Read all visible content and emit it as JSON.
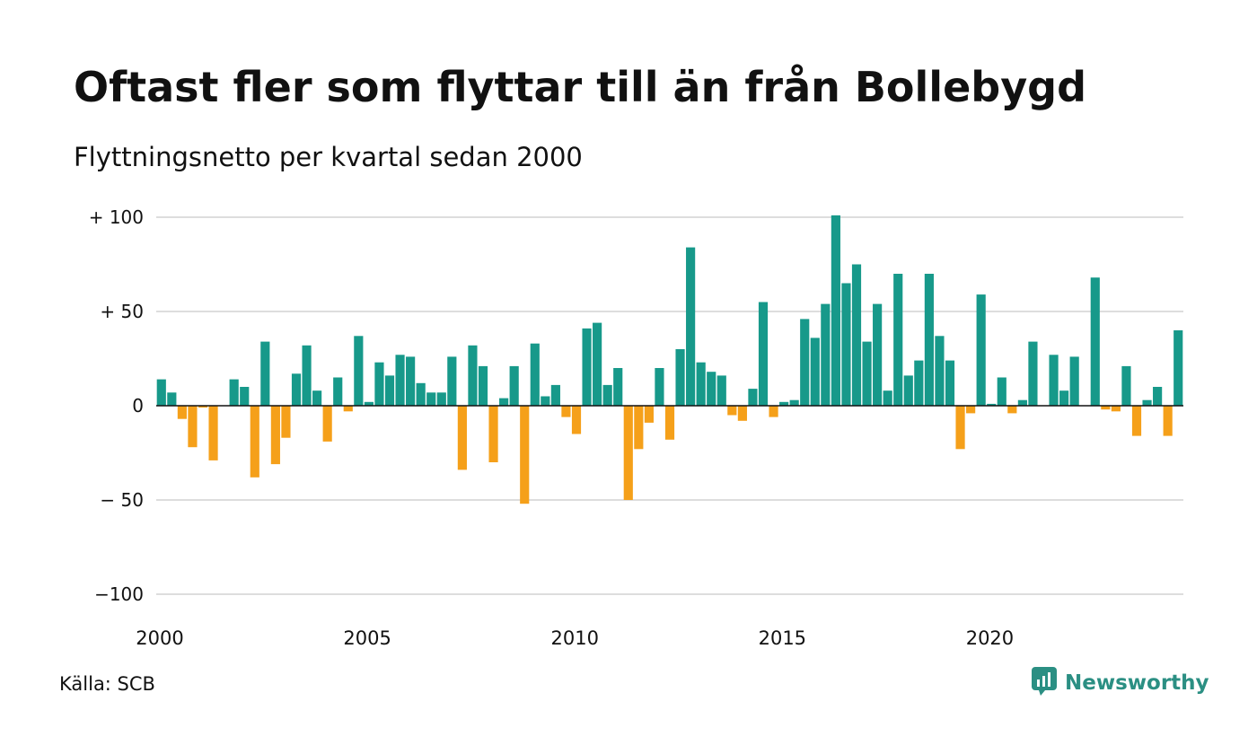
{
  "title": "Oftast fler som flyttar till än från Bollebygd",
  "subtitle": "Flyttningsnetto per kvartal sedan 2000",
  "source": "Källa: SCB",
  "brand": {
    "name": "Newsworthy",
    "icon": "newsworthy-logo-icon",
    "color": "#2b8f83"
  },
  "colors": {
    "positive": "#17998a",
    "negative": "#f5a01a",
    "grid": "#dddddd",
    "zero": "#111111"
  },
  "chart_data": {
    "type": "bar",
    "title": "Oftast fler som flyttar till än från Bollebygd",
    "subtitle": "Flyttningsnetto per kvartal sedan 2000",
    "xlabel": "",
    "ylabel": "",
    "ylim": [
      -100,
      100
    ],
    "y_ticks": [
      {
        "value": 100,
        "label": "+ 100"
      },
      {
        "value": 50,
        "label": "+  50"
      },
      {
        "value": 0,
        "label": "0"
      },
      {
        "value": -50,
        "label": "− 50"
      },
      {
        "value": -100,
        "label": "−100"
      }
    ],
    "x_ticks": [
      "2000",
      "2005",
      "2010",
      "2015",
      "2020"
    ],
    "x_tick_years": [
      2000,
      2005,
      2010,
      2015,
      2020
    ],
    "grid": true,
    "categories": [
      "2000K1",
      "2000K2",
      "2000K3",
      "2000K4",
      "2001K1",
      "2001K2",
      "2001K3",
      "2001K4",
      "2002K1",
      "2002K2",
      "2002K3",
      "2002K4",
      "2003K1",
      "2003K2",
      "2003K3",
      "2003K4",
      "2004K1",
      "2004K2",
      "2004K3",
      "2004K4",
      "2005K1",
      "2005K2",
      "2005K3",
      "2005K4",
      "2006K1",
      "2006K2",
      "2006K3",
      "2006K4",
      "2007K1",
      "2007K2",
      "2007K3",
      "2007K4",
      "2008K1",
      "2008K2",
      "2008K3",
      "2008K4",
      "2009K1",
      "2009K2",
      "2009K3",
      "2009K4",
      "2010K1",
      "2010K2",
      "2010K3",
      "2010K4",
      "2011K1",
      "2011K2",
      "2011K3",
      "2011K4",
      "2012K1",
      "2012K2",
      "2012K3",
      "2012K4",
      "2013K1",
      "2013K2",
      "2013K3",
      "2013K4",
      "2014K1",
      "2014K2",
      "2014K3",
      "2014K4",
      "2015K1",
      "2015K2",
      "2015K3",
      "2015K4",
      "2016K1",
      "2016K2",
      "2016K3",
      "2016K4",
      "2017K1",
      "2017K2",
      "2017K3",
      "2017K4",
      "2018K1",
      "2018K2",
      "2018K3",
      "2018K4",
      "2019K1",
      "2019K2",
      "2019K3",
      "2019K4",
      "2020K1",
      "2020K2",
      "2020K3",
      "2020K4",
      "2021K1",
      "2021K2",
      "2021K3",
      "2021K4",
      "2022K1",
      "2022K2",
      "2022K3",
      "2022K4",
      "2023K1",
      "2023K2",
      "2023K3",
      "2023K4",
      "2024K1",
      "2024K2",
      "2024K3"
    ],
    "values": [
      14,
      7,
      -7,
      -22,
      -1,
      -29,
      0,
      14,
      10,
      -38,
      34,
      -31,
      -17,
      17,
      32,
      8,
      -19,
      15,
      -3,
      37,
      2,
      23,
      16,
      27,
      26,
      12,
      7,
      7,
      26,
      -34,
      32,
      21,
      -30,
      4,
      21,
      -52,
      33,
      5,
      11,
      -6,
      -15,
      41,
      44,
      11,
      20,
      -50,
      -23,
      -9,
      20,
      -18,
      30,
      84,
      23,
      18,
      16,
      -5,
      -8,
      9,
      55,
      -6,
      2,
      3,
      46,
      36,
      54,
      101,
      65,
      75,
      34,
      54,
      8,
      70,
      16,
      24,
      70,
      37,
      24,
      -23,
      -4,
      59,
      1,
      15,
      -4,
      3,
      34,
      0,
      27,
      8,
      26,
      0,
      68,
      -2,
      -3,
      21,
      -16,
      3,
      10,
      -16,
      40
    ]
  }
}
